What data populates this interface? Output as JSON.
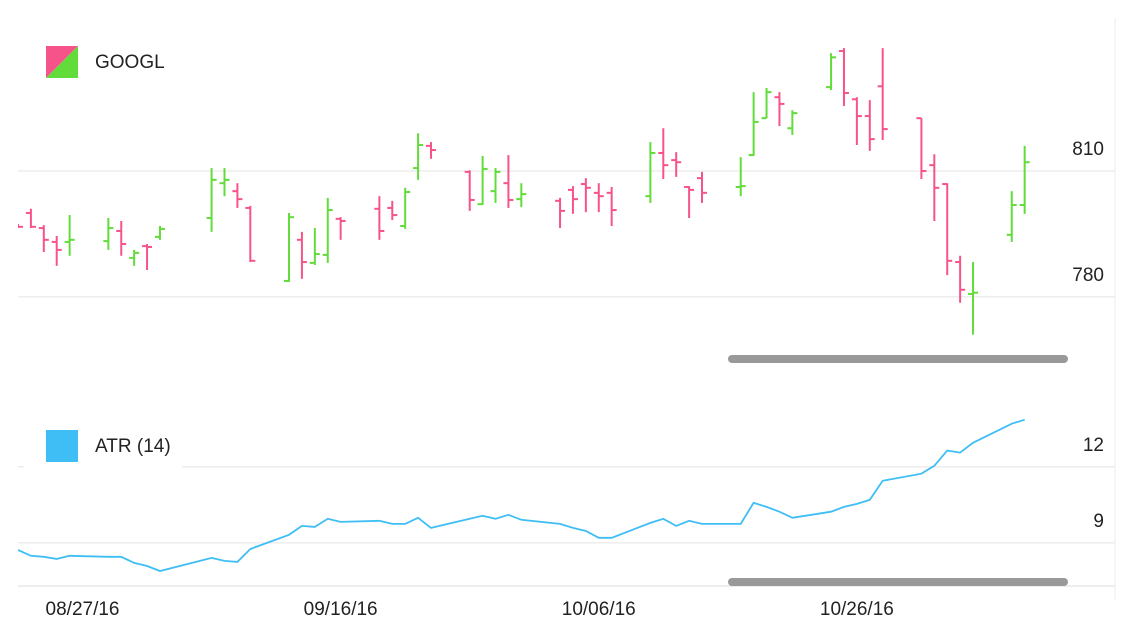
{
  "chart_data": [
    {
      "type": "ohlc",
      "x": [
        "08/22/16",
        "08/23/16",
        "08/24/16",
        "08/25/16",
        "08/26/16",
        "08/29/16",
        "08/30/16",
        "08/31/16",
        "09/01/16",
        "09/02/16",
        "09/06/16",
        "09/07/16",
        "09/08/16",
        "09/09/16",
        "09/12/16",
        "09/13/16",
        "09/14/16",
        "09/15/16",
        "09/16/16",
        "09/19/16",
        "09/20/16",
        "09/21/16",
        "09/22/16",
        "09/23/16",
        "09/26/16",
        "09/27/16",
        "09/28/16",
        "09/29/16",
        "09/30/16",
        "10/03/16",
        "10/04/16",
        "10/05/16",
        "10/06/16",
        "10/07/16",
        "10/10/16",
        "10/11/16",
        "10/12/16",
        "10/13/16",
        "10/14/16",
        "10/17/16",
        "10/18/16",
        "10/19/16",
        "10/20/16",
        "10/21/16",
        "10/24/16",
        "10/25/16",
        "10/26/16",
        "10/27/16",
        "10/28/16",
        "10/31/16",
        "11/01/16",
        "11/02/16",
        "11/03/16",
        "11/04/16",
        "11/07/16",
        "11/08/16"
      ],
      "xlim": [
        "08/22/16",
        "11/15/16"
      ],
      "series": [
        {
          "name": "GOOGL",
          "up_color": "#62dc3a",
          "down_color": "#f7538b",
          "open": [
            796.9,
            800.0,
            796.4,
            793.1,
            793.1,
            793.3,
            795.7,
            789.3,
            792.1,
            794.3,
            798.8,
            807.1,
            805.2,
            801.2,
            783.8,
            793.6,
            788.1,
            790.0,
            798.6,
            801.0,
            801.2,
            796.9,
            810.7,
            816.0,
            809.8,
            802.1,
            805.2,
            807.1,
            803.3,
            802.9,
            805.5,
            806.9,
            804.8,
            804.8,
            804.0,
            814.3,
            812.6,
            806.2,
            808.3,
            806.2,
            813.8,
            822.6,
            827.6,
            820.2,
            830.0,
            838.6,
            827.1,
            823.1,
            830.2,
            822.6,
            811.4,
            806.9,
            788.3,
            780.7,
            794.8,
            801.9
          ],
          "high": [
            797.4,
            801.0,
            797.1,
            794.5,
            799.5,
            798.8,
            798.1,
            791.2,
            792.6,
            796.9,
            810.7,
            810.7,
            807.1,
            801.7,
            800.0,
            795.5,
            796.4,
            803.6,
            799.0,
            804.0,
            802.9,
            806.0,
            819.0,
            816.9,
            810.2,
            813.6,
            810.7,
            813.8,
            807.1,
            803.6,
            806.4,
            808.3,
            807.1,
            806.2,
            816.9,
            820.2,
            814.5,
            806.4,
            809.8,
            813.3,
            828.8,
            829.8,
            828.8,
            824.5,
            838.1,
            839.3,
            827.6,
            826.9,
            839.3,
            822.6,
            814.0,
            807.1,
            789.8,
            788.3,
            805.2,
            816.0
          ],
          "low": [
            796.4,
            796.4,
            790.7,
            787.4,
            789.8,
            791.2,
            789.8,
            787.4,
            786.4,
            793.6,
            795.5,
            804.0,
            801.2,
            788.3,
            783.6,
            784.3,
            787.6,
            788.1,
            793.6,
            793.6,
            798.3,
            796.2,
            807.9,
            812.9,
            800.5,
            801.9,
            802.4,
            801.2,
            801.4,
            796.4,
            799.8,
            800.2,
            800.2,
            796.9,
            802.4,
            808.1,
            808.6,
            798.8,
            802.4,
            804.0,
            813.6,
            822.6,
            820.7,
            818.6,
            829.3,
            825.5,
            816.2,
            814.8,
            817.4,
            808.1,
            798.1,
            785.2,
            778.6,
            771.0,
            793.1,
            799.8
          ],
          "close": [
            796.7,
            796.7,
            793.6,
            791.2,
            793.6,
            796.4,
            792.6,
            790.5,
            791.9,
            796.2,
            807.9,
            807.9,
            803.3,
            788.6,
            799.0,
            788.3,
            790.2,
            800.7,
            798.1,
            795.7,
            799.5,
            805.0,
            816.2,
            815.0,
            803.1,
            810.5,
            809.8,
            803.1,
            804.5,
            800.5,
            803.3,
            806.0,
            804.0,
            800.7,
            814.3,
            811.4,
            812.1,
            805.5,
            804.8,
            806.4,
            821.7,
            828.8,
            826.0,
            823.8,
            837.1,
            828.6,
            823.1,
            817.6,
            820.0,
            810.0,
            806.0,
            788.6,
            781.7,
            781.0,
            801.9,
            812.1
          ]
        }
      ],
      "ylim": [
        764,
        846
      ],
      "yticks": [
        780,
        810
      ],
      "grid": true
    },
    {
      "type": "line",
      "x": [
        "08/22/16",
        "08/23/16",
        "08/24/16",
        "08/25/16",
        "08/26/16",
        "08/29/16",
        "08/30/16",
        "08/31/16",
        "09/01/16",
        "09/02/16",
        "09/06/16",
        "09/07/16",
        "09/08/16",
        "09/09/16",
        "09/12/16",
        "09/13/16",
        "09/14/16",
        "09/15/16",
        "09/16/16",
        "09/19/16",
        "09/20/16",
        "09/21/16",
        "09/22/16",
        "09/23/16",
        "09/26/16",
        "09/27/16",
        "09/28/16",
        "09/29/16",
        "09/30/16",
        "10/03/16",
        "10/04/16",
        "10/05/16",
        "10/06/16",
        "10/07/16",
        "10/10/16",
        "10/11/16",
        "10/12/16",
        "10/13/16",
        "10/14/16",
        "10/17/16",
        "10/18/16",
        "10/19/16",
        "10/20/16",
        "10/21/16",
        "10/24/16",
        "10/25/16",
        "10/26/16",
        "10/27/16",
        "10/28/16",
        "10/31/16",
        "11/01/16",
        "11/02/16",
        "11/03/16",
        "11/04/16",
        "11/07/16",
        "11/08/16"
      ],
      "xlim": [
        "08/22/16",
        "11/15/16"
      ],
      "xticks": [
        "08/27/16",
        "09/16/16",
        "10/06/16",
        "10/26/16"
      ],
      "series": [
        {
          "name": "ATR (14)",
          "color": "#3fbef5",
          "values": [
            8.72,
            8.49,
            8.45,
            8.37,
            8.49,
            8.45,
            8.45,
            8.21,
            8.09,
            7.89,
            8.41,
            8.29,
            8.25,
            8.76,
            9.32,
            9.67,
            9.63,
            9.95,
            9.83,
            9.87,
            9.75,
            9.75,
            9.99,
            9.59,
            9.95,
            10.07,
            9.95,
            10.11,
            9.91,
            9.75,
            9.59,
            9.47,
            9.2,
            9.2,
            9.79,
            9.95,
            9.67,
            9.87,
            9.75,
            9.75,
            10.58,
            10.42,
            10.23,
            9.99,
            10.23,
            10.42,
            10.54,
            10.7,
            11.45,
            11.73,
            12.04,
            12.64,
            12.56,
            12.95,
            13.7,
            13.86
          ]
        }
      ],
      "ylim": [
        7.3,
        14.4
      ],
      "yticks": [
        9,
        12
      ],
      "grid": true
    }
  ]
}
